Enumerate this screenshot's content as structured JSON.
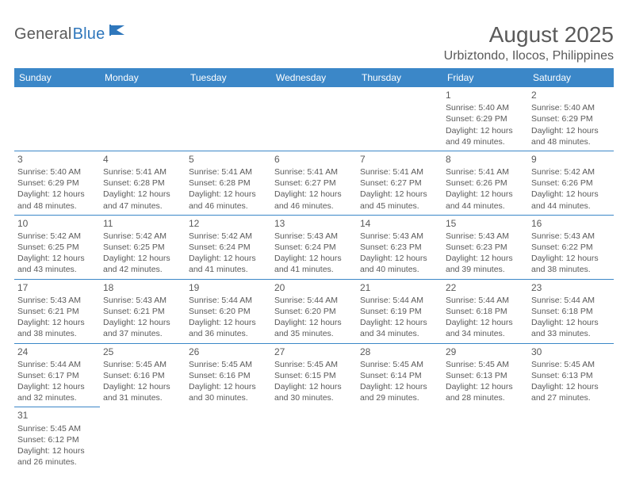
{
  "brand": {
    "part1": "General",
    "part2": "Blue"
  },
  "title": "August 2025",
  "location": "Urbiztondo, Ilocos, Philippines",
  "colors": {
    "header_bg": "#3b87c8",
    "header_text": "#ffffff",
    "text": "#5a5a5a",
    "brand_blue": "#2f77bc",
    "border": "#3b87c8",
    "background": "#ffffff"
  },
  "typography": {
    "title_fontsize": 28,
    "location_fontsize": 16,
    "dayhead_fontsize": 12,
    "cell_fontsize": 10.5
  },
  "days_of_week": [
    "Sunday",
    "Monday",
    "Tuesday",
    "Wednesday",
    "Thursday",
    "Friday",
    "Saturday"
  ],
  "weeks": [
    [
      null,
      null,
      null,
      null,
      null,
      {
        "n": "1",
        "sr": "Sunrise: 5:40 AM",
        "ss": "Sunset: 6:29 PM",
        "d1": "Daylight: 12 hours",
        "d2": "and 49 minutes."
      },
      {
        "n": "2",
        "sr": "Sunrise: 5:40 AM",
        "ss": "Sunset: 6:29 PM",
        "d1": "Daylight: 12 hours",
        "d2": "and 48 minutes."
      }
    ],
    [
      {
        "n": "3",
        "sr": "Sunrise: 5:40 AM",
        "ss": "Sunset: 6:29 PM",
        "d1": "Daylight: 12 hours",
        "d2": "and 48 minutes."
      },
      {
        "n": "4",
        "sr": "Sunrise: 5:41 AM",
        "ss": "Sunset: 6:28 PM",
        "d1": "Daylight: 12 hours",
        "d2": "and 47 minutes."
      },
      {
        "n": "5",
        "sr": "Sunrise: 5:41 AM",
        "ss": "Sunset: 6:28 PM",
        "d1": "Daylight: 12 hours",
        "d2": "and 46 minutes."
      },
      {
        "n": "6",
        "sr": "Sunrise: 5:41 AM",
        "ss": "Sunset: 6:27 PM",
        "d1": "Daylight: 12 hours",
        "d2": "and 46 minutes."
      },
      {
        "n": "7",
        "sr": "Sunrise: 5:41 AM",
        "ss": "Sunset: 6:27 PM",
        "d1": "Daylight: 12 hours",
        "d2": "and 45 minutes."
      },
      {
        "n": "8",
        "sr": "Sunrise: 5:41 AM",
        "ss": "Sunset: 6:26 PM",
        "d1": "Daylight: 12 hours",
        "d2": "and 44 minutes."
      },
      {
        "n": "9",
        "sr": "Sunrise: 5:42 AM",
        "ss": "Sunset: 6:26 PM",
        "d1": "Daylight: 12 hours",
        "d2": "and 44 minutes."
      }
    ],
    [
      {
        "n": "10",
        "sr": "Sunrise: 5:42 AM",
        "ss": "Sunset: 6:25 PM",
        "d1": "Daylight: 12 hours",
        "d2": "and 43 minutes."
      },
      {
        "n": "11",
        "sr": "Sunrise: 5:42 AM",
        "ss": "Sunset: 6:25 PM",
        "d1": "Daylight: 12 hours",
        "d2": "and 42 minutes."
      },
      {
        "n": "12",
        "sr": "Sunrise: 5:42 AM",
        "ss": "Sunset: 6:24 PM",
        "d1": "Daylight: 12 hours",
        "d2": "and 41 minutes."
      },
      {
        "n": "13",
        "sr": "Sunrise: 5:43 AM",
        "ss": "Sunset: 6:24 PM",
        "d1": "Daylight: 12 hours",
        "d2": "and 41 minutes."
      },
      {
        "n": "14",
        "sr": "Sunrise: 5:43 AM",
        "ss": "Sunset: 6:23 PM",
        "d1": "Daylight: 12 hours",
        "d2": "and 40 minutes."
      },
      {
        "n": "15",
        "sr": "Sunrise: 5:43 AM",
        "ss": "Sunset: 6:23 PM",
        "d1": "Daylight: 12 hours",
        "d2": "and 39 minutes."
      },
      {
        "n": "16",
        "sr": "Sunrise: 5:43 AM",
        "ss": "Sunset: 6:22 PM",
        "d1": "Daylight: 12 hours",
        "d2": "and 38 minutes."
      }
    ],
    [
      {
        "n": "17",
        "sr": "Sunrise: 5:43 AM",
        "ss": "Sunset: 6:21 PM",
        "d1": "Daylight: 12 hours",
        "d2": "and 38 minutes."
      },
      {
        "n": "18",
        "sr": "Sunrise: 5:43 AM",
        "ss": "Sunset: 6:21 PM",
        "d1": "Daylight: 12 hours",
        "d2": "and 37 minutes."
      },
      {
        "n": "19",
        "sr": "Sunrise: 5:44 AM",
        "ss": "Sunset: 6:20 PM",
        "d1": "Daylight: 12 hours",
        "d2": "and 36 minutes."
      },
      {
        "n": "20",
        "sr": "Sunrise: 5:44 AM",
        "ss": "Sunset: 6:20 PM",
        "d1": "Daylight: 12 hours",
        "d2": "and 35 minutes."
      },
      {
        "n": "21",
        "sr": "Sunrise: 5:44 AM",
        "ss": "Sunset: 6:19 PM",
        "d1": "Daylight: 12 hours",
        "d2": "and 34 minutes."
      },
      {
        "n": "22",
        "sr": "Sunrise: 5:44 AM",
        "ss": "Sunset: 6:18 PM",
        "d1": "Daylight: 12 hours",
        "d2": "and 34 minutes."
      },
      {
        "n": "23",
        "sr": "Sunrise: 5:44 AM",
        "ss": "Sunset: 6:18 PM",
        "d1": "Daylight: 12 hours",
        "d2": "and 33 minutes."
      }
    ],
    [
      {
        "n": "24",
        "sr": "Sunrise: 5:44 AM",
        "ss": "Sunset: 6:17 PM",
        "d1": "Daylight: 12 hours",
        "d2": "and 32 minutes."
      },
      {
        "n": "25",
        "sr": "Sunrise: 5:45 AM",
        "ss": "Sunset: 6:16 PM",
        "d1": "Daylight: 12 hours",
        "d2": "and 31 minutes."
      },
      {
        "n": "26",
        "sr": "Sunrise: 5:45 AM",
        "ss": "Sunset: 6:16 PM",
        "d1": "Daylight: 12 hours",
        "d2": "and 30 minutes."
      },
      {
        "n": "27",
        "sr": "Sunrise: 5:45 AM",
        "ss": "Sunset: 6:15 PM",
        "d1": "Daylight: 12 hours",
        "d2": "and 30 minutes."
      },
      {
        "n": "28",
        "sr": "Sunrise: 5:45 AM",
        "ss": "Sunset: 6:14 PM",
        "d1": "Daylight: 12 hours",
        "d2": "and 29 minutes."
      },
      {
        "n": "29",
        "sr": "Sunrise: 5:45 AM",
        "ss": "Sunset: 6:13 PM",
        "d1": "Daylight: 12 hours",
        "d2": "and 28 minutes."
      },
      {
        "n": "30",
        "sr": "Sunrise: 5:45 AM",
        "ss": "Sunset: 6:13 PM",
        "d1": "Daylight: 12 hours",
        "d2": "and 27 minutes."
      }
    ],
    [
      {
        "n": "31",
        "sr": "Sunrise: 5:45 AM",
        "ss": "Sunset: 6:12 PM",
        "d1": "Daylight: 12 hours",
        "d2": "and 26 minutes."
      },
      null,
      null,
      null,
      null,
      null,
      null
    ]
  ]
}
